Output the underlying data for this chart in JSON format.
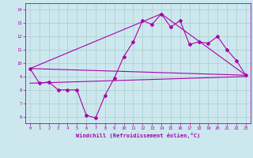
{
  "title": "",
  "xlabel": "Windchill (Refroidissement éolien,°C)",
  "ylabel": "",
  "bg_color": "#cce8ee",
  "line_color": "#aa00aa",
  "grid_color": "#aacccc",
  "xlim": [
    -0.5,
    23.5
  ],
  "ylim": [
    5.5,
    14.5
  ],
  "yticks": [
    6,
    7,
    8,
    9,
    10,
    11,
    12,
    13,
    14
  ],
  "xticks": [
    0,
    1,
    2,
    3,
    4,
    5,
    6,
    7,
    8,
    9,
    10,
    11,
    12,
    13,
    14,
    15,
    16,
    17,
    18,
    19,
    20,
    21,
    22,
    23
  ],
  "series1_x": [
    0,
    1,
    2,
    3,
    4,
    5,
    6,
    7,
    8,
    9,
    10,
    11,
    12,
    13,
    14,
    15,
    16,
    17,
    18,
    19,
    20,
    21,
    22,
    23
  ],
  "series1_y": [
    9.6,
    8.5,
    8.6,
    8.0,
    8.0,
    8.0,
    6.1,
    5.9,
    7.6,
    8.9,
    10.5,
    11.6,
    13.2,
    12.9,
    13.7,
    12.7,
    13.2,
    11.4,
    11.6,
    11.5,
    12.0,
    11.0,
    10.2,
    9.1
  ],
  "series2_x": [
    0,
    23
  ],
  "series2_y": [
    9.6,
    9.1
  ],
  "series3_x": [
    0,
    14,
    23
  ],
  "series3_y": [
    9.6,
    13.7,
    9.1
  ],
  "series4_x": [
    0,
    23
  ],
  "series4_y": [
    8.5,
    9.0
  ],
  "marker": "D",
  "markersize": 2,
  "linewidth": 0.8,
  "tick_fontsize": 4.0,
  "xlabel_fontsize": 5.0
}
